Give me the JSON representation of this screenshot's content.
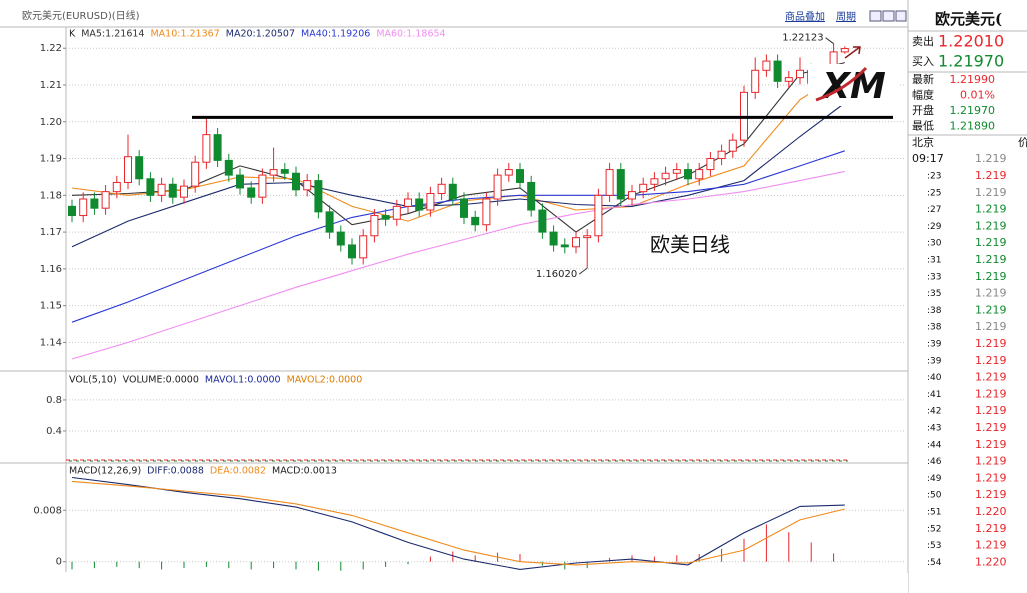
{
  "header": {
    "title": "欧元美元(EURUSD)(日线)",
    "overlay": "商品叠加",
    "period": "周期"
  },
  "chart_data": [
    {
      "type": "candlestick",
      "legend_label": "K",
      "up_color": "#e8262b",
      "down_color": "#0f8a2f",
      "ylim": [
        1.1325,
        1.2255
      ],
      "yticks": [
        1.14,
        1.15,
        1.16,
        1.17,
        1.18,
        1.19,
        {
          "value": 1.2,
          "label": "1.20"
        },
        1.21,
        1.22
      ],
      "grid": true,
      "open": [
        1.177,
        1.1745,
        1.179,
        1.1765,
        1.181,
        1.1835,
        1.1905,
        1.1845,
        1.18,
        1.183,
        1.1795,
        1.1825,
        1.189,
        1.1965,
        1.1895,
        1.1855,
        1.182,
        1.1795,
        1.1855,
        1.187,
        1.186,
        1.1815,
        1.184,
        1.1755,
        1.17,
        1.1665,
        1.163,
        1.169,
        1.1745,
        1.1735,
        1.177,
        1.179,
        1.176,
        1.1805,
        1.183,
        1.179,
        1.174,
        1.172,
        1.179,
        1.1855,
        1.187,
        1.1835,
        1.176,
        1.17,
        1.1665,
        1.166,
        1.1685,
        1.169,
        1.18,
        1.187,
        1.179,
        1.181,
        1.183,
        1.1845,
        1.186,
        1.187,
        1.1845,
        1.187,
        1.19,
        1.192,
        1.195,
        1.208,
        1.214,
        1.2165,
        1.211,
        1.212,
        1.214,
        1.2105,
        1.213,
        1.219
      ],
      "high": [
        1.1788,
        1.1808,
        1.1808,
        1.1828,
        1.1853,
        1.1965,
        1.1923,
        1.1863,
        1.1848,
        1.1848,
        1.1843,
        1.1908,
        1.2012,
        1.1983,
        1.1913,
        1.1873,
        1.1838,
        1.1873,
        1.193,
        1.1888,
        1.1878,
        1.1858,
        1.1858,
        1.1773,
        1.1718,
        1.1683,
        1.1708,
        1.1763,
        1.1763,
        1.1788,
        1.1808,
        1.1808,
        1.1823,
        1.1848,
        1.1848,
        1.1808,
        1.1758,
        1.1808,
        1.1873,
        1.1888,
        1.1888,
        1.1853,
        1.1778,
        1.1718,
        1.1683,
        1.1703,
        1.1708,
        1.1818,
        1.1888,
        1.1888,
        1.1828,
        1.1848,
        1.1863,
        1.1878,
        1.1888,
        1.1888,
        1.1888,
        1.1918,
        1.1938,
        1.1968,
        1.2098,
        1.2175,
        1.2183,
        1.2183,
        1.2138,
        1.2175,
        1.2158,
        1.2148,
        1.22123,
        1.2205
      ],
      "low": [
        1.1727,
        1.1727,
        1.1747,
        1.1747,
        1.1792,
        1.1817,
        1.1827,
        1.1782,
        1.1782,
        1.1777,
        1.1777,
        1.1807,
        1.1872,
        1.1877,
        1.1837,
        1.1802,
        1.1777,
        1.1777,
        1.1837,
        1.1842,
        1.1797,
        1.1797,
        1.1737,
        1.1682,
        1.1647,
        1.1612,
        1.1612,
        1.1672,
        1.1717,
        1.1717,
        1.1752,
        1.1742,
        1.1742,
        1.1787,
        1.1772,
        1.1722,
        1.1702,
        1.1702,
        1.1772,
        1.1837,
        1.1817,
        1.1742,
        1.1682,
        1.1647,
        1.1642,
        1.1642,
        1.1602,
        1.1672,
        1.1782,
        1.1772,
        1.1772,
        1.1792,
        1.1812,
        1.1827,
        1.1842,
        1.1827,
        1.1827,
        1.1852,
        1.1882,
        1.1902,
        1.1932,
        1.2062,
        1.2122,
        1.2092,
        1.2092,
        1.2102,
        1.2087,
        1.2087,
        1.2112,
        1.2185
      ],
      "close": [
        1.1745,
        1.179,
        1.1765,
        1.181,
        1.1835,
        1.1905,
        1.1845,
        1.18,
        1.183,
        1.1795,
        1.1825,
        1.189,
        1.1965,
        1.1895,
        1.1855,
        1.182,
        1.1795,
        1.1855,
        1.187,
        1.186,
        1.1815,
        1.184,
        1.1755,
        1.17,
        1.1665,
        1.163,
        1.169,
        1.1745,
        1.1735,
        1.177,
        1.179,
        1.176,
        1.1805,
        1.183,
        1.179,
        1.174,
        1.172,
        1.179,
        1.1855,
        1.187,
        1.1835,
        1.176,
        1.17,
        1.1665,
        1.166,
        1.1685,
        1.169,
        1.18,
        1.187,
        1.179,
        1.181,
        1.183,
        1.1845,
        1.186,
        1.187,
        1.1845,
        1.187,
        1.19,
        1.192,
        1.195,
        1.208,
        1.214,
        1.2165,
        1.211,
        1.212,
        1.214,
        1.2105,
        1.213,
        1.219,
        1.2199
      ],
      "series": [
        {
          "name": "MA5:1.21614",
          "color": "#333333",
          "x": [
            0,
            5,
            10,
            15,
            20,
            25,
            30,
            35,
            40,
            45,
            50,
            55,
            60,
            65,
            69
          ],
          "values": [
            1.18,
            1.1805,
            1.1815,
            1.188,
            1.184,
            1.172,
            1.175,
            1.18,
            1.182,
            1.17,
            1.18,
            1.1855,
            1.194,
            1.213,
            1.2161
          ]
        },
        {
          "name": "MA10:1.21367",
          "color": "#f08a1c",
          "x": [
            0,
            5,
            10,
            15,
            20,
            25,
            30,
            35,
            40,
            45,
            50,
            55,
            60,
            65,
            69
          ],
          "values": [
            1.182,
            1.18,
            1.1815,
            1.185,
            1.1845,
            1.177,
            1.173,
            1.1785,
            1.18,
            1.176,
            1.177,
            1.183,
            1.188,
            1.206,
            1.2137
          ]
        },
        {
          "name": "MA20:1.20507",
          "color": "#1c2a6e",
          "x": [
            0,
            5,
            10,
            15,
            20,
            25,
            30,
            35,
            40,
            45,
            50,
            55,
            60,
            65,
            69
          ],
          "values": [
            1.166,
            1.173,
            1.178,
            1.183,
            1.1835,
            1.18,
            1.177,
            1.1775,
            1.179,
            1.1775,
            1.177,
            1.18,
            1.184,
            1.196,
            1.2051
          ]
        },
        {
          "name": "MA40:1.19206",
          "color": "#2b37d6",
          "x": [
            0,
            5,
            10,
            15,
            20,
            25,
            30,
            35,
            40,
            45,
            50,
            55,
            60,
            65,
            69
          ],
          "values": [
            1.1455,
            1.151,
            1.157,
            1.163,
            1.169,
            1.174,
            1.177,
            1.179,
            1.18,
            1.18,
            1.18,
            1.181,
            1.183,
            1.188,
            1.1921
          ]
        },
        {
          "name": "MA60:1.18654",
          "color": "#f08ef0",
          "x": [
            0,
            5,
            10,
            15,
            20,
            25,
            30,
            35,
            40,
            45,
            50,
            55,
            60,
            65,
            69
          ],
          "values": [
            1.1355,
            1.14,
            1.145,
            1.15,
            1.155,
            1.1595,
            1.164,
            1.168,
            1.172,
            1.175,
            1.1775,
            1.179,
            1.181,
            1.184,
            1.1865
          ]
        }
      ],
      "level_line": 1.2012,
      "annotations": [
        {
          "text": "1.22123",
          "index": 68,
          "value": 1.22123
        },
        {
          "text": "1.16020",
          "index": 46,
          "value": 1.1602
        }
      ],
      "label": "欧美日线",
      "logo": "XM"
    },
    {
      "type": "volume",
      "ylim": [
        0,
        1.16
      ],
      "yticks": [
        0.4,
        0.8
      ],
      "indicator": "VOL(5,10)",
      "series": [
        {
          "name": "VOLUME:0.0000",
          "color": "#222222"
        },
        {
          "name": "MAVOL1:0.0000",
          "color": "#1c2a9e"
        },
        {
          "name": "MAVOL2:0.0000",
          "color": "#e07b00"
        }
      ]
    },
    {
      "type": "macd",
      "ylim": [
        -0.0016,
        0.0152
      ],
      "yticks": [
        0,
        0.008
      ],
      "indicator": "MACD(12,26,9)",
      "up_color": "#e8262b",
      "down_color": "#0f8a2f",
      "series": [
        {
          "name": "DIFF:0.0088",
          "color": "#1c2a6e",
          "x": [
            0,
            5,
            10,
            15,
            20,
            25,
            30,
            35,
            40,
            45,
            50,
            55,
            60,
            65,
            69
          ],
          "values": [
            0.0131,
            0.012,
            0.0108,
            0.0098,
            0.0085,
            0.0062,
            0.003,
            0.0004,
            -0.0012,
            -0.0002,
            0.0004,
            -0.0005,
            0.0045,
            0.0086,
            0.0088
          ]
        },
        {
          "name": "DEA:0.0082",
          "color": "#f08a1c",
          "x": [
            0,
            5,
            10,
            15,
            20,
            25,
            30,
            35,
            40,
            45,
            50,
            55,
            60,
            65,
            69
          ],
          "values": [
            0.0125,
            0.0118,
            0.011,
            0.0102,
            0.009,
            0.0072,
            0.0045,
            0.0018,
            0.0,
            -0.0005,
            0.0,
            -0.0002,
            0.0018,
            0.0065,
            0.0082
          ]
        }
      ],
      "bars": {
        "name": "MACD:0.0013",
        "x": [
          0,
          2,
          4,
          6,
          8,
          10,
          12,
          14,
          16,
          18,
          20,
          22,
          24,
          26,
          28,
          30,
          32,
          34,
          36,
          38,
          40,
          42,
          44,
          46,
          48,
          50,
          52,
          54,
          56,
          58,
          60,
          62,
          64,
          66,
          68
        ],
        "values": [
          -0.0012,
          -0.001,
          -0.0008,
          -0.001,
          -0.0012,
          -0.001,
          -0.0008,
          -0.001,
          -0.0012,
          -0.001,
          -0.0012,
          -0.0014,
          -0.0014,
          -0.0012,
          -0.0008,
          -0.0004,
          0.0008,
          0.0016,
          0.001,
          0.0014,
          0.0012,
          -0.0006,
          -0.0012,
          -0.001,
          0.0006,
          0.001,
          0.0008,
          0.001,
          0.0012,
          0.002,
          0.0036,
          0.0058,
          0.0046,
          0.003,
          0.0013
        ]
      }
    }
  ],
  "quote_panel": {
    "title": "欧元美元(",
    "sell": {
      "label": "卖出",
      "price": "1.22010"
    },
    "buy": {
      "label": "买入",
      "price": "1.21970"
    },
    "stats": [
      {
        "label": "最新",
        "value": "1.21990",
        "color": "#e8262b"
      },
      {
        "label": "幅度",
        "value": "0.01%",
        "color": "#e8262b"
      },
      {
        "label": "开盘",
        "value": "1.21970",
        "color": "#0f8a2f"
      },
      {
        "label": "最低",
        "value": "1.21890",
        "color": "#0f8a2f"
      }
    ],
    "tick_header": {
      "place": "北京",
      "price": "价"
    },
    "first_tick": {
      "time": "09:17",
      "price": "1.219"
    },
    "ticks": [
      {
        "time": ":23",
        "price": "1.219",
        "color": "#e8262b"
      },
      {
        "time": ":25",
        "price": "1.219",
        "color": "#888888"
      },
      {
        "time": ":27",
        "price": "1.219",
        "color": "#0f8a2f"
      },
      {
        "time": ":29",
        "price": "1.219",
        "color": "#0f8a2f"
      },
      {
        "time": ":30",
        "price": "1.219",
        "color": "#0f8a2f"
      },
      {
        "time": ":31",
        "price": "1.219",
        "color": "#0f8a2f"
      },
      {
        "time": ":33",
        "price": "1.219",
        "color": "#0f8a2f"
      },
      {
        "time": ":35",
        "price": "1.219",
        "color": "#888888"
      },
      {
        "time": ":38",
        "price": "1.219",
        "color": "#0f8a2f"
      },
      {
        "time": ":38",
        "price": "1.219",
        "color": "#888888"
      },
      {
        "time": ":39",
        "price": "1.219",
        "color": "#e8262b"
      },
      {
        "time": ":39",
        "price": "1.219",
        "color": "#e8262b"
      },
      {
        "time": ":40",
        "price": "1.219",
        "color": "#e8262b"
      },
      {
        "time": ":41",
        "price": "1.219",
        "color": "#e8262b"
      },
      {
        "time": ":42",
        "price": "1.219",
        "color": "#e8262b"
      },
      {
        "time": ":43",
        "price": "1.219",
        "color": "#e8262b"
      },
      {
        "time": ":44",
        "price": "1.219",
        "color": "#e8262b"
      },
      {
        "time": ":46",
        "price": "1.219",
        "color": "#e8262b"
      },
      {
        "time": ":49",
        "price": "1.219",
        "color": "#e8262b"
      },
      {
        "time": ":50",
        "price": "1.219",
        "color": "#e8262b"
      },
      {
        "time": ":51",
        "price": "1.220",
        "color": "#e8262b"
      },
      {
        "time": ":52",
        "price": "1.219",
        "color": "#e8262b"
      },
      {
        "time": ":53",
        "price": "1.219",
        "color": "#e8262b"
      },
      {
        "time": ":54",
        "price": "1.220",
        "color": "#e8262b"
      }
    ]
  }
}
